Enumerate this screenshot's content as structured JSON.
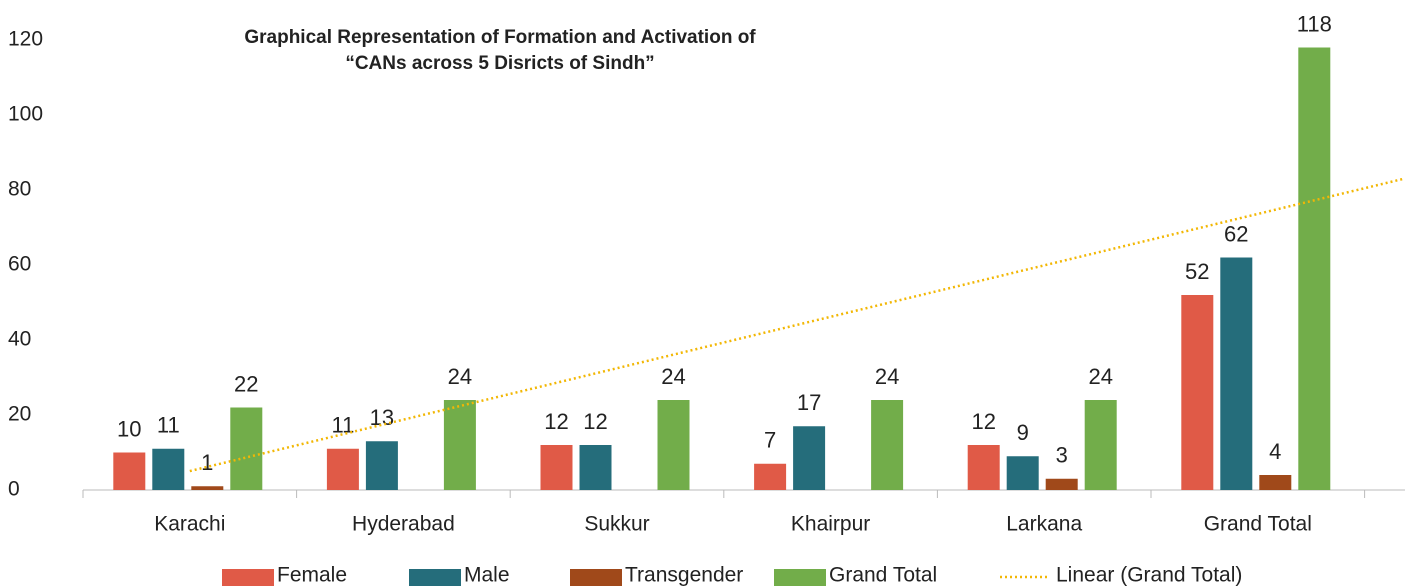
{
  "chart_data": {
    "type": "bar",
    "title": [
      "Graphical Representation of Formation and Activation of",
      "“CANs across 5 Disricts of Sindh”"
    ],
    "categories": [
      "Karachi",
      "Hyderabad",
      "Sukkur",
      "Khairpur",
      "Larkana",
      "Grand Total"
    ],
    "series": [
      {
        "name": "Female",
        "color": "#e05a47",
        "values": [
          10,
          11,
          12,
          7,
          12,
          52
        ]
      },
      {
        "name": "Male",
        "color": "#256d7b",
        "values": [
          11,
          13,
          12,
          17,
          9,
          62
        ]
      },
      {
        "name": "Transgender",
        "color": "#a0491a",
        "values": [
          1,
          null,
          null,
          null,
          3,
          4
        ]
      },
      {
        "name": "Grand Total",
        "color": "#72ad4a",
        "values": [
          22,
          24,
          24,
          24,
          24,
          118
        ]
      }
    ],
    "trendline": {
      "name": "Linear (Grand Total)",
      "color": "#f2b705",
      "kind": "linear"
    },
    "ylim": [
      0,
      120
    ],
    "yticks": [
      0,
      20,
      40,
      60,
      80,
      100,
      120
    ],
    "grid": false,
    "legend": "bottom"
  }
}
